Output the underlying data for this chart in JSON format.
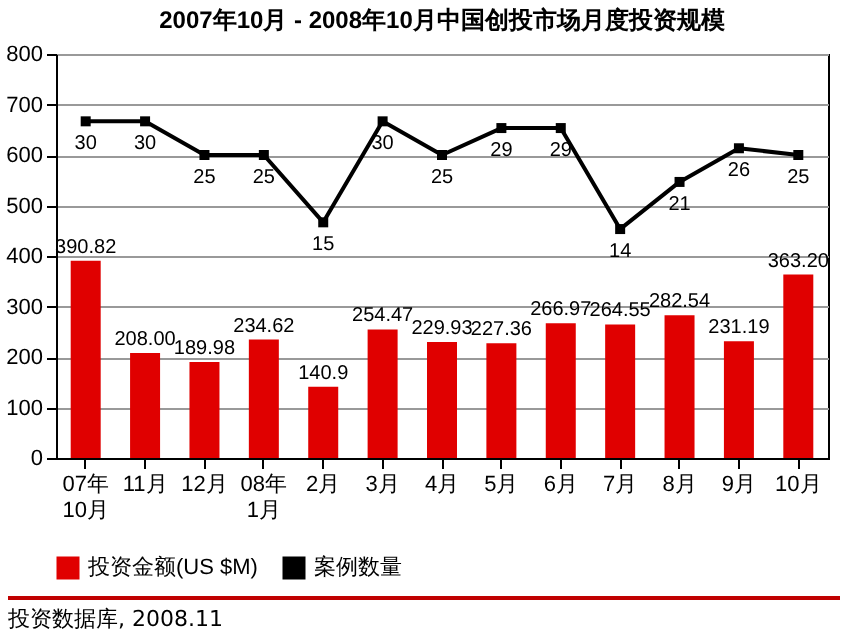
{
  "chart_data": {
    "type": "bar",
    "title": "2007年10月 - 2008年10月中国创投市场月度投资规模",
    "categories": [
      "07年\n10月",
      "11月",
      "12月",
      "08年\n1月",
      "2月",
      "3月",
      "4月",
      "5月",
      "6月",
      "7月",
      "8月",
      "9月",
      "10月"
    ],
    "series": [
      {
        "name": "投资金额(US $M)",
        "color": "#e00000",
        "values": [
          390.82,
          208.0,
          189.98,
          234.62,
          140.9,
          254.47,
          229.93,
          227.36,
          266.97,
          264.55,
          282.54,
          231.19,
          363.2
        ],
        "value_labels": [
          "390.82",
          "208.00",
          "189.98",
          "234.62",
          "140.9",
          "254.47",
          "229.93",
          "227.36",
          "266.97",
          "264.55",
          "282.54",
          "231.19",
          "363.20"
        ]
      },
      {
        "name": "案例数量",
        "type": "line",
        "axis": "y2",
        "color": "#000000",
        "marker": "square",
        "values": [
          30,
          30,
          25,
          25,
          15,
          30,
          25,
          29,
          29,
          14,
          21,
          26,
          25
        ],
        "value_labels": [
          "30",
          "30",
          "25",
          "25",
          "15",
          "30",
          "25",
          "29",
          "29",
          "14",
          "21",
          "26",
          "25"
        ]
      }
    ],
    "ylim": [
      0,
      800
    ],
    "yticks": [
      0,
      100,
      200,
      300,
      400,
      500,
      600,
      700,
      800
    ],
    "y2lim": [
      -20,
      40
    ],
    "grid": "y",
    "legend": "bottom",
    "annotations": [
      "投资数据库, 2008.11"
    ]
  }
}
